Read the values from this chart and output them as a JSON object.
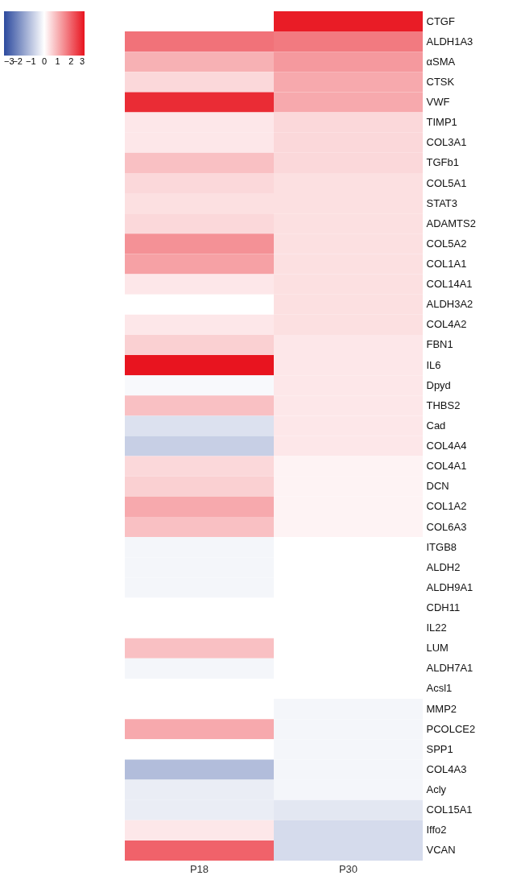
{
  "chart_data": {
    "type": "heatmap",
    "categories": [
      "P18",
      "P30"
    ],
    "y_categories": [
      "CTGF",
      "ALDH1A3",
      "αSMA",
      "CTSK",
      "VWF",
      "TIMP1",
      "COL3A1",
      "TGFb1",
      "COL5A1",
      "STAT3",
      "ADAMTS2",
      "COL5A2",
      "COL1A1",
      "COL14A1",
      "ALDH3A2",
      "COL4A2",
      "FBN1",
      "IL6",
      "Dpyd",
      "THBS2",
      "Cad",
      "COL4A4",
      "COL4A1",
      "DCN",
      "COL1A2",
      "COL6A3",
      "ITGB8",
      "ALDH2",
      "ALDH9A1",
      "CDH11",
      "IL22",
      "LUM",
      "ALDH7A1",
      "Acsl1",
      "MMP2",
      "PCOLCE2",
      "SPP1",
      "COL4A3",
      "Acly",
      "COL15A1",
      "Iffo2",
      "VCAN"
    ],
    "cells": [
      [
        null,
        2.9
      ],
      [
        1.8,
        1.7
      ],
      [
        1.0,
        1.3
      ],
      [
        0.5,
        1.1
      ],
      [
        2.7,
        1.1
      ],
      [
        0.3,
        0.5
      ],
      [
        0.3,
        0.5
      ],
      [
        0.8,
        0.5
      ],
      [
        0.5,
        0.4
      ],
      [
        0.4,
        0.4
      ],
      [
        0.5,
        0.4
      ],
      [
        1.4,
        0.4
      ],
      [
        1.2,
        0.4
      ],
      [
        0.3,
        0.4
      ],
      [
        0,
        0.4
      ],
      [
        0.3,
        0.4
      ],
      [
        0.6,
        0.3
      ],
      [
        3,
        0.3
      ],
      [
        -0.1,
        0.3
      ],
      [
        0.8,
        0.3
      ],
      [
        -0.5,
        0.3
      ],
      [
        -0.8,
        0.3
      ],
      [
        0.5,
        0.15
      ],
      [
        0.6,
        0.15
      ],
      [
        1.1,
        0.15
      ],
      [
        0.8,
        0.15
      ],
      [
        -0.15,
        0
      ],
      [
        -0.15,
        0
      ],
      [
        -0.15,
        0
      ],
      [
        0,
        0
      ],
      [
        0,
        0
      ],
      [
        0.8,
        0
      ],
      [
        -0.15,
        0
      ],
      [
        0,
        0
      ],
      [
        0,
        -0.15
      ],
      [
        1.1,
        -0.15
      ],
      [
        0,
        -0.15
      ],
      [
        -1.1,
        -0.15
      ],
      [
        -0.3,
        -0.15
      ],
      [
        -0.3,
        -0.4
      ],
      [
        0.3,
        -0.6
      ],
      [
        2.0,
        -0.6
      ]
    ],
    "clim": [
      -3,
      3
    ],
    "cticks": [
      -3,
      -2,
      -1,
      0,
      1,
      2,
      3
    ],
    "colors": [
      "#2c4a9e",
      "#ffffff",
      "#e8141f"
    ]
  }
}
